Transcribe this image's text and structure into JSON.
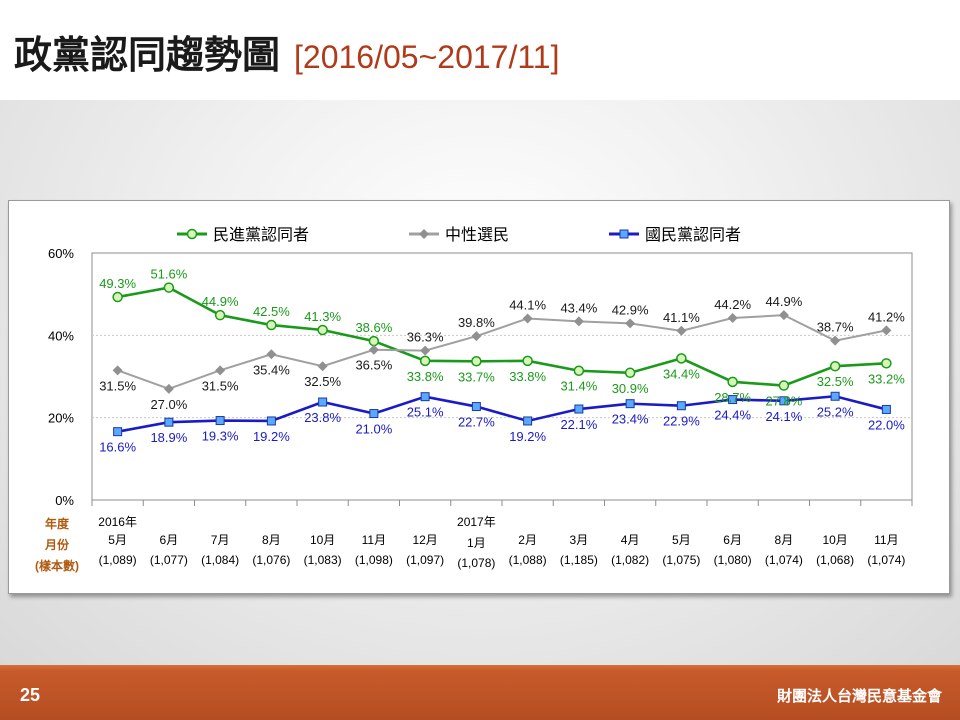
{
  "slide": {
    "title": "政黨認同趨勢圖",
    "subtitle": "[2016/05~2017/11]",
    "page_number": "25",
    "organization": "財團法人台灣民意基金會"
  },
  "colors": {
    "dpp": "#1a9a1a",
    "neutral": "#a0a0a0",
    "kmt": "#1a1ac8",
    "axis_label_brown": "#b05a10"
  },
  "chart_data": {
    "type": "line",
    "ylim": [
      0,
      60
    ],
    "yticks": [
      "0%",
      "20%",
      "40%",
      "60%"
    ],
    "grid": true,
    "legend_position": "top",
    "axis_header": [
      "年度",
      "月份",
      "(樣本數)"
    ],
    "x": [
      {
        "year": "2016年",
        "month": "5月",
        "n": "(1,089)"
      },
      {
        "year": "",
        "month": "6月",
        "n": "(1,077)"
      },
      {
        "year": "",
        "month": "7月",
        "n": "(1,084)"
      },
      {
        "year": "",
        "month": "8月",
        "n": "(1,076)"
      },
      {
        "year": "",
        "month": "10月",
        "n": "(1,083)"
      },
      {
        "year": "",
        "month": "11月",
        "n": "(1,098)"
      },
      {
        "year": "",
        "month": "12月",
        "n": "(1,097)"
      },
      {
        "year": "2017年",
        "month": "1月",
        "n": "(1,078)"
      },
      {
        "year": "",
        "month": "2月",
        "n": "(1,088)"
      },
      {
        "year": "",
        "month": "3月",
        "n": "(1,185)"
      },
      {
        "year": "",
        "month": "4月",
        "n": "(1,082)"
      },
      {
        "year": "",
        "month": "5月",
        "n": "(1,075)"
      },
      {
        "year": "",
        "month": "6月",
        "n": "(1,080)"
      },
      {
        "year": "",
        "month": "8月",
        "n": "(1,074)"
      },
      {
        "year": "",
        "month": "10月",
        "n": "(1,068)"
      },
      {
        "year": "",
        "month": "11月",
        "n": "(1,074)"
      }
    ],
    "series": [
      {
        "name": "民進黨認同者",
        "key": "dpp",
        "values": [
          49.3,
          51.6,
          44.9,
          42.5,
          41.3,
          38.6,
          33.8,
          33.7,
          33.8,
          31.4,
          30.9,
          34.4,
          28.7,
          27.8,
          32.5,
          33.2
        ],
        "labels": [
          "49.3%",
          "51.6%",
          "44.9%",
          "42.5%",
          "41.3%",
          "38.6%",
          "33.8%",
          "33.7%",
          "33.8%",
          "31.4%",
          "30.9%",
          "34.4%",
          "28.7%",
          "27.8%",
          "32.5%",
          "33.2%"
        ]
      },
      {
        "name": "中性選民",
        "key": "neutral",
        "values": [
          31.5,
          27.0,
          31.5,
          35.4,
          32.5,
          36.5,
          36.3,
          39.8,
          44.1,
          43.4,
          42.9,
          41.1,
          44.2,
          44.9,
          38.7,
          41.2
        ],
        "labels": [
          "31.5%",
          "27.0%",
          "31.5%",
          "35.4%",
          "32.5%",
          "36.5%",
          "36.3%",
          "39.8%",
          "44.1%",
          "43.4%",
          "42.9%",
          "41.1%",
          "44.2%",
          "44.9%",
          "38.7%",
          "41.2%"
        ]
      },
      {
        "name": "國民黨認同者",
        "key": "kmt",
        "values": [
          16.6,
          18.9,
          19.3,
          19.2,
          23.8,
          21.0,
          25.1,
          22.7,
          19.2,
          22.1,
          23.4,
          22.9,
          24.4,
          24.1,
          25.2,
          22.0
        ],
        "labels": [
          "16.6%",
          "18.9%",
          "19.3%",
          "19.2%",
          "23.8%",
          "21.0%",
          "25.1%",
          "22.7%",
          "19.2%",
          "22.1%",
          "23.4%",
          "22.9%",
          "24.4%",
          "24.1%",
          "25.2%",
          "22.0%"
        ]
      }
    ]
  }
}
